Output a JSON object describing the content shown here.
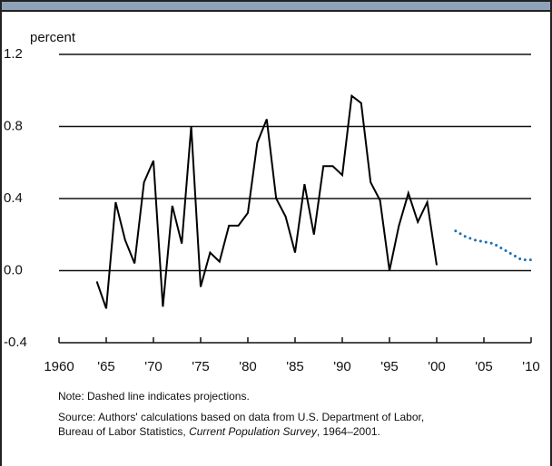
{
  "chart_data": {
    "type": "line",
    "ylabel": "percent",
    "series": [
      {
        "color": "#000000",
        "dash": false,
        "x": [
          1964,
          1965,
          1966,
          1967,
          1968,
          1969,
          1970,
          1971,
          1972,
          1973,
          1974,
          1975,
          1976,
          1977,
          1978,
          1979,
          1980,
          1981,
          1982,
          1983,
          1984,
          1985,
          1986,
          1987,
          1988,
          1989,
          1990,
          1991,
          1992,
          1993,
          1994,
          1995,
          1996,
          1997,
          1998,
          1999,
          2000
        ],
        "values": [
          -0.06,
          -0.21,
          0.38,
          0.17,
          0.04,
          0.49,
          0.61,
          -0.2,
          0.36,
          0.15,
          0.8,
          -0.09,
          0.1,
          0.05,
          0.25,
          0.25,
          0.32,
          0.71,
          0.84,
          0.4,
          0.3,
          0.1,
          0.48,
          0.2,
          0.58,
          0.58,
          0.53,
          0.97,
          0.93,
          0.49,
          0.39,
          0,
          0.25,
          0.43,
          0.27,
          0.38,
          0.03
        ]
      },
      {
        "color": "#1f6fb5",
        "dash": true,
        "x": [
          2002,
          2003,
          2004,
          2005,
          2006,
          2007,
          2008,
          2009,
          2010
        ],
        "values": [
          0.22,
          0.19,
          0.17,
          0.16,
          0.15,
          0.12,
          0.09,
          0.06,
          0.06
        ]
      }
    ],
    "xlim": [
      1960,
      2010
    ],
    "xticks": [
      1960,
      {
        "value": 1965,
        "label": "'65"
      },
      {
        "value": 1970,
        "label": "'70"
      },
      {
        "value": 1975,
        "label": "'75"
      },
      {
        "value": 1980,
        "label": "'80"
      },
      {
        "value": 1985,
        "label": "'85"
      },
      {
        "value": 1990,
        "label": "'90"
      },
      {
        "value": 1995,
        "label": "'95"
      },
      {
        "value": 2000,
        "label": "'00"
      },
      {
        "value": 2005,
        "label": "'05"
      },
      {
        "value": 2010,
        "label": "'10"
      }
    ],
    "ylim": [
      -0.4,
      1.2
    ],
    "yticks": [
      -0.4,
      {
        "value": 0,
        "label": "0.0"
      },
      0.4,
      0.8,
      1.2
    ],
    "grid": true,
    "note": "Note: Dashed line indicates projections.",
    "source_line1": "Source: Authors' calculations based on data from U.S. Department of Labor,",
    "source_line2": [
      "Bureau of Labor Statistics, ",
      "Current Population Survey",
      ", 1964–2001."
    ]
  }
}
